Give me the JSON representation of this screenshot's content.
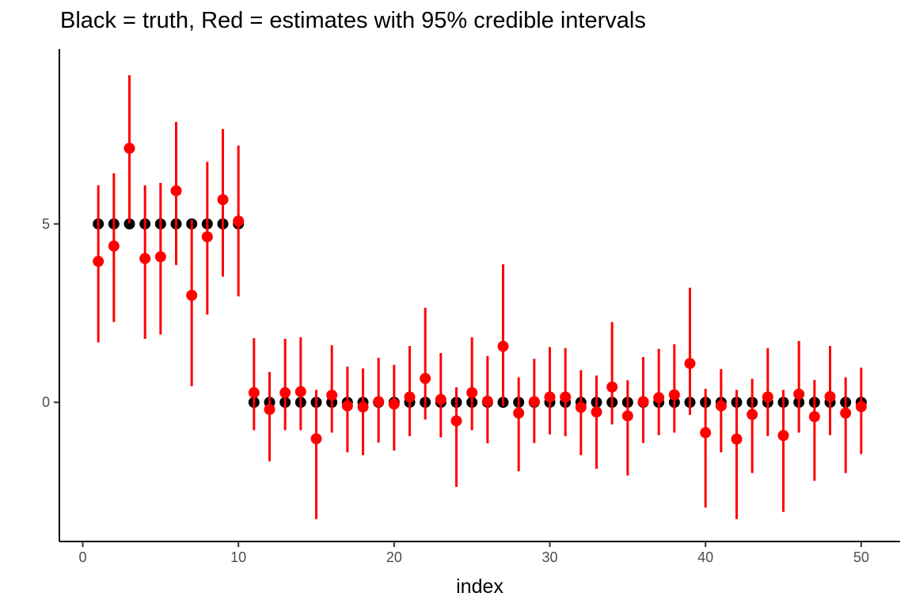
{
  "chart_data": {
    "type": "scatter",
    "title": "Black = truth, Red = estimates with 95% credible intervals",
    "xlabel": "index",
    "ylabel": "",
    "xlim": [
      -1.5,
      52.5
    ],
    "ylim": [
      -3.9,
      9.9
    ],
    "x_ticks": [
      0,
      10,
      20,
      30,
      40,
      50
    ],
    "y_ticks": [
      0,
      5
    ],
    "grid": false,
    "colors": {
      "truth": "#000000",
      "estimate": "#ff0000",
      "axis": "#000000",
      "tick_text": "#4d4d4d"
    },
    "x": [
      1,
      2,
      3,
      4,
      5,
      6,
      7,
      8,
      9,
      10,
      11,
      12,
      13,
      14,
      15,
      16,
      17,
      18,
      19,
      20,
      21,
      22,
      23,
      24,
      25,
      26,
      27,
      28,
      29,
      30,
      31,
      32,
      33,
      34,
      35,
      36,
      37,
      38,
      39,
      40,
      41,
      42,
      43,
      44,
      45,
      46,
      47,
      48,
      49,
      50
    ],
    "series": [
      {
        "name": "truth",
        "color": "#000000",
        "values": [
          5,
          5,
          5,
          5,
          5,
          5,
          5,
          5,
          5,
          5,
          0,
          0,
          0,
          0,
          0,
          0,
          0,
          0,
          0,
          0,
          0,
          0,
          0,
          0,
          0,
          0,
          0,
          0,
          0,
          0,
          0,
          0,
          0,
          0,
          0,
          0,
          0,
          0,
          0,
          0,
          0,
          0,
          0,
          0,
          0,
          0,
          0,
          0,
          0,
          0
        ]
      },
      {
        "name": "estimate",
        "color": "#ff0000",
        "values": [
          3.95,
          4.38,
          7.12,
          4.03,
          4.08,
          5.93,
          3.0,
          4.64,
          5.68,
          5.08,
          0.27,
          -0.2,
          0.27,
          0.3,
          -1.02,
          0.2,
          -0.1,
          -0.13,
          0.02,
          -0.05,
          0.15,
          0.67,
          0.08,
          -0.52,
          0.27,
          0.03,
          1.57,
          -0.3,
          0.02,
          0.15,
          0.15,
          -0.14,
          -0.27,
          0.43,
          -0.38,
          0.02,
          0.13,
          0.21,
          1.09,
          -0.85,
          -0.1,
          -1.03,
          -0.34,
          0.15,
          -0.93,
          0.23,
          -0.4,
          0.16,
          -0.3,
          -0.12
        ],
        "lower": [
          1.68,
          2.25,
          5.02,
          1.78,
          1.9,
          3.85,
          0.45,
          2.46,
          3.52,
          2.97,
          -0.78,
          -1.65,
          -0.78,
          -0.78,
          -3.27,
          -0.85,
          -1.4,
          -1.48,
          -1.13,
          -1.35,
          -0.95,
          -0.48,
          -0.98,
          -2.37,
          -0.78,
          -1.15,
          -0.1,
          -1.93,
          -1.14,
          -0.9,
          -0.95,
          -1.48,
          -1.86,
          -0.62,
          -2.05,
          -1.14,
          -0.92,
          -0.85,
          -0.35,
          -2.95,
          -1.4,
          -3.27,
          -1.98,
          -0.95,
          -3.07,
          -0.85,
          -2.2,
          -0.92,
          -1.98,
          -1.45
        ],
        "upper": [
          6.08,
          6.42,
          9.17,
          6.08,
          6.15,
          7.86,
          5.12,
          6.74,
          7.66,
          7.2,
          1.8,
          0.85,
          1.78,
          1.82,
          0.35,
          1.6,
          1.0,
          0.95,
          1.25,
          1.05,
          1.58,
          2.65,
          1.38,
          0.42,
          1.82,
          1.3,
          3.87,
          0.7,
          1.22,
          1.55,
          1.52,
          0.9,
          0.75,
          2.25,
          0.62,
          1.27,
          1.5,
          1.63,
          3.21,
          0.38,
          0.93,
          0.35,
          0.66,
          1.52,
          0.35,
          1.72,
          0.63,
          1.58,
          0.7,
          0.97
        ]
      }
    ]
  }
}
